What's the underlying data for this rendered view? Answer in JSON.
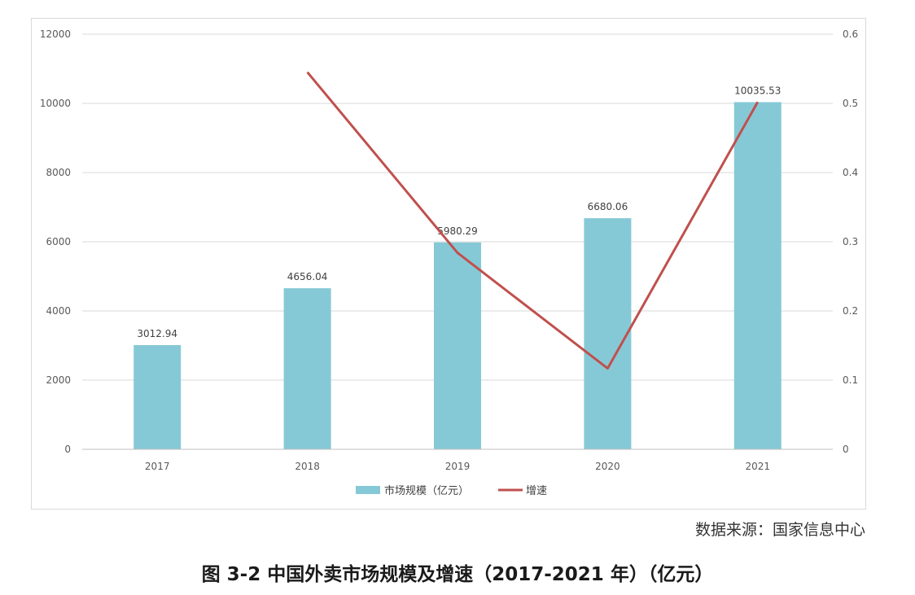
{
  "chart_data": {
    "type": "bar",
    "title": "图 3-2 中国外卖市场规模及增速（2017-2021 年）（亿元）",
    "categories": [
      "2017",
      "2018",
      "2019",
      "2020",
      "2021"
    ],
    "series": [
      {
        "name": "市场规模（亿元）",
        "type": "bar",
        "axis": "left",
        "color": "#86c9d6",
        "values": [
          3012.94,
          4656.04,
          5980.29,
          6680.06,
          10035.53
        ],
        "labels": [
          "3012.94",
          "4656.04",
          "5980.29",
          "6680.06",
          "10035.53"
        ]
      },
      {
        "name": "增速",
        "type": "line",
        "axis": "right",
        "color": "#c0504d",
        "values": [
          null,
          0.545,
          0.284,
          0.117,
          0.502
        ]
      }
    ],
    "ylim_left": [
      0,
      12000
    ],
    "yticks_left": [
      "0",
      "2000",
      "4000",
      "6000",
      "8000",
      "10000",
      "12000"
    ],
    "ylim_right": [
      0,
      0.6
    ],
    "yticks_right": [
      "0",
      "0.1",
      "0.2",
      "0.3",
      "0.4",
      "0.5",
      "0.6"
    ],
    "grid": true,
    "legend": "bottom"
  },
  "source_text": "数据来源：国家信息中心",
  "caption": "图 3-2 中国外卖市场规模及增速（2017-2021 年）（亿元）"
}
